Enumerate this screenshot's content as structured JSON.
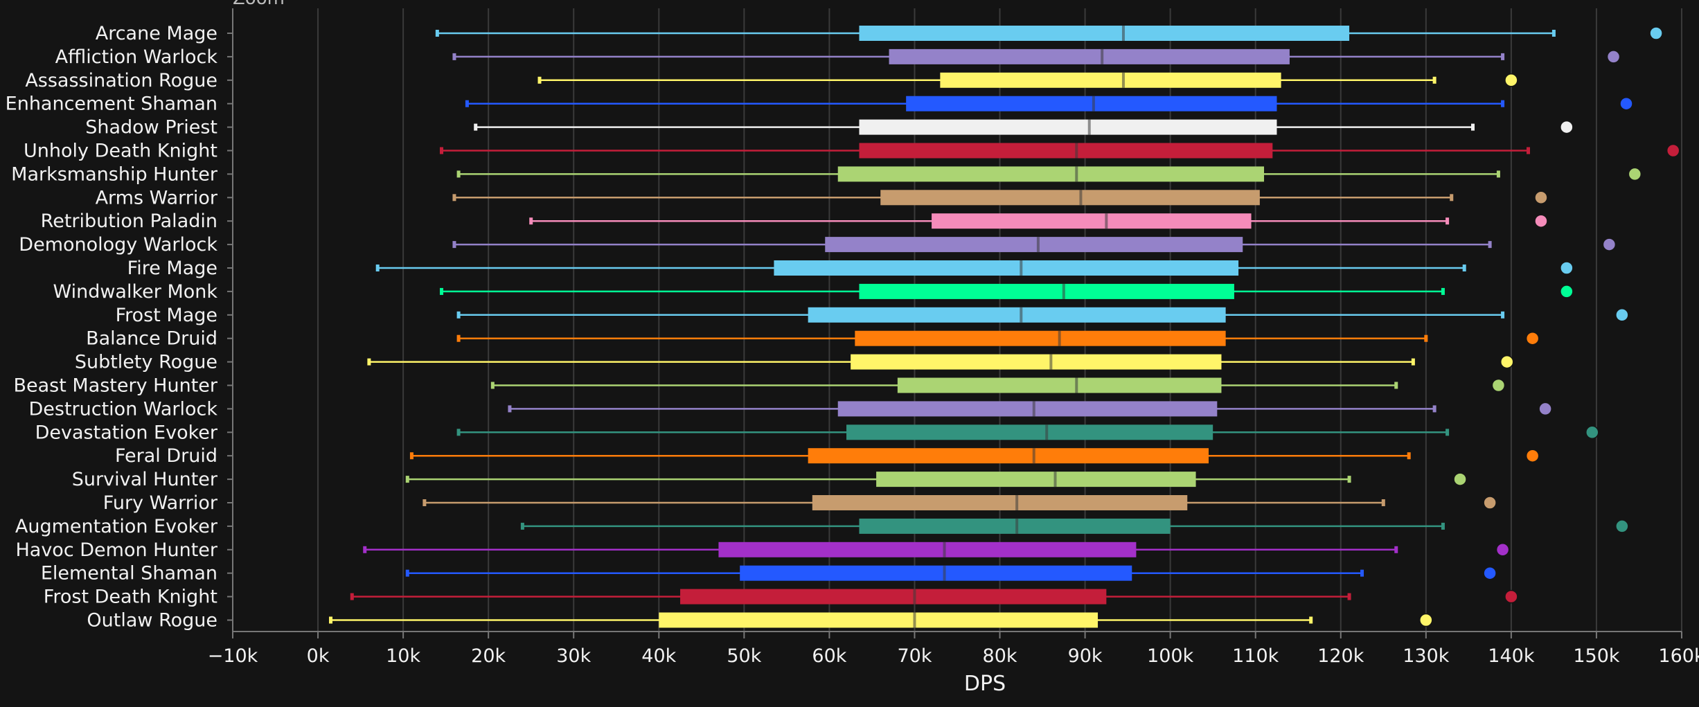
{
  "zoom_label": "Zoom",
  "chart_data": {
    "type": "boxplot",
    "xlabel": "DPS",
    "ylabel": "",
    "xlim": [
      -10000,
      160000
    ],
    "ticks": [
      -10000,
      0,
      10000,
      20000,
      30000,
      40000,
      50000,
      60000,
      70000,
      80000,
      90000,
      100000,
      110000,
      120000,
      130000,
      140000,
      150000,
      160000
    ],
    "tick_labels": [
      "−10k",
      "0k",
      "10k",
      "20k",
      "30k",
      "40k",
      "50k",
      "60k",
      "70k",
      "80k",
      "90k",
      "100k",
      "110k",
      "120k",
      "130k",
      "140k",
      "150k",
      "160k"
    ],
    "grid": true,
    "orientation": "horizontal",
    "series": [
      {
        "name": "Arcane Mage",
        "color": "#69ccf0",
        "min": 14000,
        "q1": 63500,
        "median": 94500,
        "q3": 121000,
        "max": 145000,
        "top": 157000
      },
      {
        "name": "Affliction Warlock",
        "color": "#9482c9",
        "min": 16000,
        "q1": 67000,
        "median": 92000,
        "q3": 114000,
        "max": 139000,
        "top": 152000
      },
      {
        "name": "Assassination Rogue",
        "color": "#fff569",
        "min": 26000,
        "q1": 73000,
        "median": 94500,
        "q3": 113000,
        "max": 131000,
        "top": 140000
      },
      {
        "name": "Enhancement Shaman",
        "color": "#2459ff",
        "min": 17500,
        "q1": 69000,
        "median": 91000,
        "q3": 112500,
        "max": 139000,
        "top": 153500
      },
      {
        "name": "Shadow Priest",
        "color": "#f0f0f0",
        "min": 18500,
        "q1": 63500,
        "median": 90500,
        "q3": 112500,
        "max": 135500,
        "top": 146500
      },
      {
        "name": "Unholy Death Knight",
        "color": "#c41e3a",
        "min": 14500,
        "q1": 63500,
        "median": 89000,
        "q3": 112000,
        "max": 142000,
        "top": 159000
      },
      {
        "name": "Marksmanship Hunter",
        "color": "#abd473",
        "min": 16500,
        "q1": 61000,
        "median": 89000,
        "q3": 111000,
        "max": 138500,
        "top": 154500
      },
      {
        "name": "Arms Warrior",
        "color": "#c79c6e",
        "min": 16000,
        "q1": 66000,
        "median": 89500,
        "q3": 110500,
        "max": 133000,
        "top": 143500
      },
      {
        "name": "Retribution Paladin",
        "color": "#f58cba",
        "min": 25000,
        "q1": 72000,
        "median": 92500,
        "q3": 109500,
        "max": 132500,
        "top": 143500
      },
      {
        "name": "Demonology Warlock",
        "color": "#9482c9",
        "min": 16000,
        "q1": 59500,
        "median": 84500,
        "q3": 108500,
        "max": 137500,
        "top": 151500
      },
      {
        "name": "Fire Mage",
        "color": "#69ccf0",
        "min": 7000,
        "q1": 53500,
        "median": 82500,
        "q3": 108000,
        "max": 134500,
        "top": 146500
      },
      {
        "name": "Windwalker Monk",
        "color": "#00ff96",
        "min": 14500,
        "q1": 63500,
        "median": 87500,
        "q3": 107500,
        "max": 132000,
        "top": 146500
      },
      {
        "name": "Frost Mage",
        "color": "#69ccf0",
        "min": 16500,
        "q1": 57500,
        "median": 82500,
        "q3": 106500,
        "max": 139000,
        "top": 153000
      },
      {
        "name": "Balance Druid",
        "color": "#ff7d0a",
        "min": 16500,
        "q1": 63000,
        "median": 87000,
        "q3": 106500,
        "max": 130000,
        "top": 142500
      },
      {
        "name": "Subtlety Rogue",
        "color": "#fff569",
        "min": 6000,
        "q1": 62500,
        "median": 86000,
        "q3": 106000,
        "max": 128500,
        "top": 139500
      },
      {
        "name": "Beast Mastery Hunter",
        "color": "#abd473",
        "min": 20500,
        "q1": 68000,
        "median": 89000,
        "q3": 106000,
        "max": 126500,
        "top": 138500
      },
      {
        "name": "Destruction Warlock",
        "color": "#9482c9",
        "min": 22500,
        "q1": 61000,
        "median": 84000,
        "q3": 105500,
        "max": 131000,
        "top": 144000
      },
      {
        "name": "Devastation Evoker",
        "color": "#33937f",
        "min": 16500,
        "q1": 62000,
        "median": 85500,
        "q3": 105000,
        "max": 132500,
        "top": 149500
      },
      {
        "name": "Feral Druid",
        "color": "#ff7d0a",
        "min": 11000,
        "q1": 57500,
        "median": 84000,
        "q3": 104500,
        "max": 128000,
        "top": 142500
      },
      {
        "name": "Survival Hunter",
        "color": "#abd473",
        "min": 10500,
        "q1": 65500,
        "median": 86500,
        "q3": 103000,
        "max": 121000,
        "top": 134000
      },
      {
        "name": "Fury Warrior",
        "color": "#c79c6e",
        "min": 12500,
        "q1": 58000,
        "median": 82000,
        "q3": 102000,
        "max": 125000,
        "top": 137500
      },
      {
        "name": "Augmentation Evoker",
        "color": "#33937f",
        "min": 24000,
        "q1": 63500,
        "median": 82000,
        "q3": 100000,
        "max": 132000,
        "top": 153000
      },
      {
        "name": "Havoc Demon Hunter",
        "color": "#a330c9",
        "min": 5500,
        "q1": 47000,
        "median": 73500,
        "q3": 96000,
        "max": 126500,
        "top": 139000
      },
      {
        "name": "Elemental Shaman",
        "color": "#2459ff",
        "min": 10500,
        "q1": 49500,
        "median": 73500,
        "q3": 95500,
        "max": 122500,
        "top": 137500
      },
      {
        "name": "Frost Death Knight",
        "color": "#c41e3a",
        "min": 4000,
        "q1": 42500,
        "median": 70000,
        "q3": 92500,
        "max": 121000,
        "top": 140000
      },
      {
        "name": "Outlaw Rogue",
        "color": "#fff569",
        "min": 1500,
        "q1": 40000,
        "median": 70000,
        "q3": 91500,
        "max": 116500,
        "top": 130000
      }
    ]
  }
}
